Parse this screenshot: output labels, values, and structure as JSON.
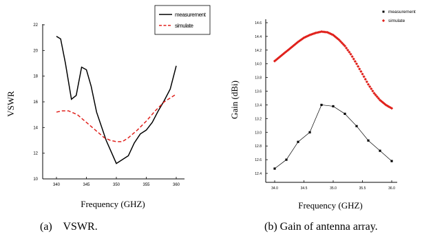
{
  "chart_data": [
    {
      "type": "line",
      "xlabel": "Frequency (GHZ)",
      "ylabel": "VSWR",
      "caption": "(a)    VSWR.",
      "xlim": [
        34.0,
        36.0
      ],
      "ylim": [
        1.0,
        2.2
      ],
      "xticks": [
        {
          "v": 34.0,
          "label": "340"
        },
        {
          "v": 34.5,
          "label": "345"
        },
        {
          "v": 35.0,
          "label": "350"
        },
        {
          "v": 35.5,
          "label": "355"
        },
        {
          "v": 36.0,
          "label": "360"
        }
      ],
      "yticks": [
        {
          "v": 1.0,
          "label": "10"
        },
        {
          "v": 1.2,
          "label": "12"
        },
        {
          "v": 1.4,
          "label": "14"
        },
        {
          "v": 1.6,
          "label": "16"
        },
        {
          "v": 1.8,
          "label": "18"
        },
        {
          "v": 2.0,
          "label": "20"
        },
        {
          "v": 2.2,
          "label": "22"
        }
      ],
      "legend_position": "top-right",
      "series": [
        {
          "name": "measurement",
          "color": "#000000",
          "style": "solid",
          "x": [
            34.0,
            34.07,
            34.15,
            34.25,
            34.33,
            34.42,
            34.5,
            34.58,
            34.67,
            34.83,
            35.0,
            35.1,
            35.2,
            35.3,
            35.4,
            35.5,
            35.6,
            35.7,
            35.8,
            35.9,
            36.0
          ],
          "y": [
            2.11,
            2.09,
            1.9,
            1.62,
            1.65,
            1.87,
            1.85,
            1.72,
            1.52,
            1.3,
            1.12,
            1.15,
            1.18,
            1.28,
            1.35,
            1.38,
            1.44,
            1.53,
            1.61,
            1.7,
            1.88
          ]
        },
        {
          "name": "simulate",
          "color": "#e0201b",
          "style": "dashed",
          "x": [
            34.0,
            34.1,
            34.2,
            34.35,
            34.5,
            34.65,
            34.8,
            34.9,
            35.0,
            35.1,
            35.2,
            35.35,
            35.5,
            35.65,
            35.8,
            36.0
          ],
          "y": [
            1.52,
            1.53,
            1.53,
            1.5,
            1.44,
            1.38,
            1.32,
            1.3,
            1.29,
            1.29,
            1.32,
            1.38,
            1.45,
            1.53,
            1.6,
            1.66
          ]
        }
      ]
    },
    {
      "type": "line",
      "xlabel": "Frequency (GHZ)",
      "ylabel": "Gain (dBi)",
      "caption": "(b) Gain of antenna array.",
      "xlim": [
        34.0,
        36.0
      ],
      "ylim": [
        12.4,
        14.6
      ],
      "xticks": [
        {
          "v": 34.0,
          "label": "34.0"
        },
        {
          "v": 34.5,
          "label": "34.5"
        },
        {
          "v": 35.0,
          "label": "35.0"
        },
        {
          "v": 35.5,
          "label": "35.5"
        },
        {
          "v": 36.0,
          "label": "36.0"
        }
      ],
      "yticks": [
        {
          "v": 12.4,
          "label": "12.4"
        },
        {
          "v": 12.6,
          "label": "12.6"
        },
        {
          "v": 12.8,
          "label": "12.8"
        },
        {
          "v": 13.0,
          "label": "13.0"
        },
        {
          "v": 13.2,
          "label": "13.2"
        },
        {
          "v": 13.4,
          "label": "13.4"
        },
        {
          "v": 13.6,
          "label": "13.6"
        },
        {
          "v": 13.8,
          "label": "13.8"
        },
        {
          "v": 14.0,
          "label": "14.0"
        },
        {
          "v": 14.2,
          "label": "14.2"
        },
        {
          "v": 14.4,
          "label": "14.4"
        },
        {
          "v": 14.6,
          "label": "14.6"
        }
      ],
      "legend_position": "top-right",
      "series": [
        {
          "name": "measurement",
          "color": "#000000",
          "style": "line-with-square-markers",
          "x": [
            34.0,
            34.2,
            34.4,
            34.6,
            34.8,
            35.0,
            35.2,
            35.4,
            35.6,
            35.8,
            36.0
          ],
          "y": [
            12.47,
            12.6,
            12.86,
            13.0,
            13.4,
            13.38,
            13.27,
            13.09,
            12.88,
            12.73,
            12.58
          ]
        },
        {
          "name": "simulate",
          "color": "#e0201b",
          "style": "dense-diamond-markers",
          "x": [
            34.0,
            34.1,
            34.2,
            34.3,
            34.4,
            34.5,
            34.6,
            34.7,
            34.8,
            34.9,
            35.0,
            35.1,
            35.2,
            35.3,
            35.4,
            35.5,
            35.6,
            35.7,
            35.8,
            35.9,
            36.0
          ],
          "y": [
            14.04,
            14.11,
            14.18,
            14.25,
            14.32,
            14.38,
            14.42,
            14.45,
            14.47,
            14.46,
            14.42,
            14.35,
            14.26,
            14.14,
            14.0,
            13.85,
            13.7,
            13.57,
            13.47,
            13.4,
            13.35
          ],
          "dense": true
        }
      ]
    }
  ]
}
